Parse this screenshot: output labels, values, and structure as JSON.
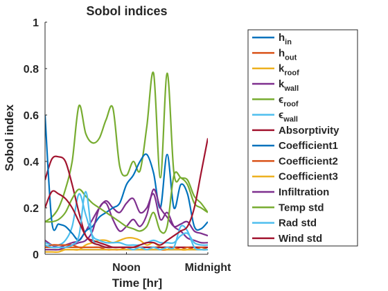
{
  "chart_data": {
    "type": "line",
    "title": "Sobol indices",
    "xlabel": "Time [hr]",
    "ylabel": "Sobol index",
    "xlim": [
      0,
      24
    ],
    "ylim": [
      0,
      1
    ],
    "x_ticks": [
      {
        "value": 12,
        "label": "Noon"
      },
      {
        "value": 24,
        "label": "Midnight"
      }
    ],
    "y_ticks": [
      {
        "value": 0,
        "label": "0"
      },
      {
        "value": 0.2,
        "label": "0.2"
      },
      {
        "value": 0.4,
        "label": "0.4"
      },
      {
        "value": 0.6,
        "label": "0.6"
      },
      {
        "value": 0.8,
        "label": "0.8"
      },
      {
        "value": 1,
        "label": "1"
      }
    ],
    "grid": false,
    "legend_position": "outside-right",
    "x": [
      0,
      1,
      2,
      3,
      4,
      5,
      6,
      7,
      8,
      9,
      10,
      11,
      12,
      13,
      14,
      15,
      16,
      17,
      18,
      19,
      20,
      21,
      22,
      23,
      24
    ],
    "series": [
      {
        "name": "h",
        "name_sub": "in",
        "color": "#0072BD",
        "values": [
          0.02,
          0.02,
          0.02,
          0.02,
          0.02,
          0.02,
          0.02,
          0.02,
          0.02,
          0.02,
          0.02,
          0.02,
          0.02,
          0.02,
          0.02,
          0.02,
          0.02,
          0.02,
          0.02,
          0.02,
          0.02,
          0.02,
          0.02,
          0.02,
          0.02
        ]
      },
      {
        "name": "h",
        "name_sub": "out",
        "color": "#D95319",
        "values": [
          0.03,
          0.03,
          0.03,
          0.03,
          0.03,
          0.03,
          0.03,
          0.03,
          0.03,
          0.03,
          0.03,
          0.03,
          0.03,
          0.03,
          0.03,
          0.03,
          0.03,
          0.03,
          0.03,
          0.03,
          0.03,
          0.03,
          0.03,
          0.03,
          0.03
        ]
      },
      {
        "name": "k",
        "name_sub": "roof",
        "color": "#EDB120",
        "values": [
          0.01,
          0.01,
          0.01,
          0.02,
          0.02,
          0.02,
          0.04,
          0.05,
          0.06,
          0.06,
          0.05,
          0.06,
          0.07,
          0.07,
          0.06,
          0.04,
          0.05,
          0.03,
          0.02,
          0.03,
          0.02,
          0.02,
          0.03,
          0.02,
          0.02
        ]
      },
      {
        "name": "k",
        "name_sub": "wall",
        "color": "#7E2F8E",
        "values": [
          0.06,
          0.04,
          0.03,
          0.04,
          0.05,
          0.06,
          0.1,
          0.15,
          0.2,
          0.23,
          0.2,
          0.18,
          0.22,
          0.24,
          0.18,
          0.2,
          0.26,
          0.15,
          0.18,
          0.12,
          0.1,
          0.07,
          0.06,
          0.05,
          0.05
        ]
      },
      {
        "name": "ϵ",
        "name_sub": "roof",
        "color": "#77AC30",
        "values": [
          0.14,
          0.16,
          0.2,
          0.28,
          0.4,
          0.64,
          0.52,
          0.48,
          0.5,
          0.58,
          0.63,
          0.38,
          0.34,
          0.4,
          0.36,
          0.55,
          0.78,
          0.33,
          0.78,
          0.35,
          0.33,
          0.32,
          0.25,
          0.22,
          0.18
        ]
      },
      {
        "name": "ϵ",
        "name_sub": "wall",
        "color": "#4DBEEE",
        "values": [
          0.05,
          0.04,
          0.04,
          0.06,
          0.12,
          0.26,
          0.17,
          0.08,
          0.06,
          0.05,
          0.05,
          0.05,
          0.04,
          0.04,
          0.04,
          0.05,
          0.06,
          0.05,
          0.05,
          0.05,
          0.08,
          0.09,
          0.05,
          0.04,
          0.04
        ]
      },
      {
        "name": "Absorptivity",
        "color": "#A2142F",
        "values": [
          0.32,
          0.41,
          0.42,
          0.4,
          0.3,
          0.18,
          0.08,
          0.06,
          0.05,
          0.04,
          0.03,
          0.03,
          0.03,
          0.03,
          0.03,
          0.03,
          0.03,
          0.03,
          0.03,
          0.03,
          0.03,
          0.03,
          0.03,
          0.03,
          0.03
        ]
      },
      {
        "name": "Coefficient1",
        "color": "#0072BD",
        "values": [
          0.6,
          0.14,
          0.13,
          0.12,
          0.09,
          0.06,
          0.1,
          0.12,
          0.16,
          0.18,
          0.2,
          0.22,
          0.3,
          0.34,
          0.4,
          0.43,
          0.35,
          0.2,
          0.43,
          0.2,
          0.3,
          0.26,
          0.12,
          0.11,
          0.14
        ]
      },
      {
        "name": "Coefficient2",
        "color": "#D95319",
        "values": [
          0.03,
          0.04,
          0.04,
          0.04,
          0.04,
          0.03,
          0.03,
          0.03,
          0.03,
          0.02,
          0.02,
          0.02,
          0.03,
          0.03,
          0.03,
          0.02,
          0.03,
          0.02,
          0.02,
          0.03,
          0.02,
          0.03,
          0.02,
          0.03,
          0.02
        ]
      },
      {
        "name": "Coefficient3",
        "color": "#EDB120",
        "values": [
          0.02,
          0.02,
          0.02,
          0.02,
          0.02,
          0.02,
          0.02,
          0.02,
          0.02,
          0.02,
          0.02,
          0.02,
          0.02,
          0.02,
          0.02,
          0.02,
          0.02,
          0.02,
          0.02,
          0.02,
          0.02,
          0.02,
          0.02,
          0.02,
          0.02
        ]
      },
      {
        "name": "Infiltration",
        "color": "#7E2F8E",
        "values": [
          0.02,
          0.02,
          0.02,
          0.03,
          0.04,
          0.05,
          0.06,
          0.1,
          0.2,
          0.22,
          0.15,
          0.1,
          0.12,
          0.15,
          0.12,
          0.17,
          0.28,
          0.2,
          0.16,
          0.12,
          0.13,
          0.14,
          0.1,
          0.09,
          0.08
        ]
      },
      {
        "name": "Temp std",
        "color": "#77AC30",
        "values": [
          0.14,
          0.14,
          0.15,
          0.18,
          0.24,
          0.28,
          0.25,
          0.22,
          0.2,
          0.18,
          0.16,
          0.14,
          0.12,
          0.11,
          0.1,
          0.12,
          0.18,
          0.1,
          0.12,
          0.34,
          0.33,
          0.3,
          0.22,
          0.2,
          0.18
        ]
      },
      {
        "name": "Rad std",
        "color": "#4DBEEE",
        "values": [
          0.04,
          0.03,
          0.03,
          0.03,
          0.04,
          0.08,
          0.27,
          0.07,
          0.04,
          0.03,
          0.03,
          0.03,
          0.03,
          0.02,
          0.03,
          0.02,
          0.03,
          0.02,
          0.03,
          0.03,
          0.12,
          0.1,
          0.03,
          0.02,
          0.02
        ]
      },
      {
        "name": "Wind std",
        "color": "#A2142F",
        "values": [
          0.2,
          0.27,
          0.26,
          0.24,
          0.2,
          0.14,
          0.08,
          0.05,
          0.04,
          0.03,
          0.03,
          0.03,
          0.03,
          0.03,
          0.04,
          0.05,
          0.05,
          0.04,
          0.06,
          0.08,
          0.1,
          0.12,
          0.2,
          0.35,
          0.5
        ]
      }
    ]
  }
}
